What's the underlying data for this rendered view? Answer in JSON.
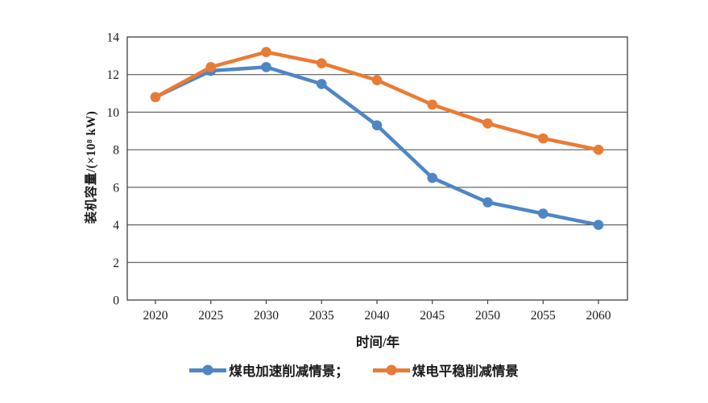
{
  "chart_data": {
    "type": "line",
    "title": "",
    "xlabel": "时间/年",
    "ylabel": "装机容量/(×10⁸ kW)",
    "categories": [
      "2020",
      "2025",
      "2030",
      "2035",
      "2040",
      "2045",
      "2050",
      "2055",
      "2060"
    ],
    "series": [
      {
        "name": "煤电加速削减情景",
        "color": "#4e86c5",
        "values": [
          10.8,
          12.2,
          12.4,
          11.5,
          9.3,
          6.5,
          5.2,
          4.6,
          4.0
        ]
      },
      {
        "name": "煤电平稳削减情景",
        "color": "#ea7b34",
        "values": [
          10.8,
          12.4,
          13.2,
          12.6,
          11.7,
          10.4,
          9.4,
          8.6,
          8.0
        ]
      }
    ],
    "ylim": [
      0,
      14
    ],
    "yticks": [
      0,
      2,
      4,
      6,
      8,
      10,
      12,
      14
    ],
    "grid": "horizontal-only",
    "axis_color": "#404040",
    "tick_label_color": "#1a1a1a",
    "legend_position": "bottom",
    "legend": [
      {
        "label": "煤电加速削减情景；",
        "color": "#4e86c5"
      },
      {
        "label": "煤电平稳削减情景",
        "color": "#ea7b34"
      }
    ]
  }
}
